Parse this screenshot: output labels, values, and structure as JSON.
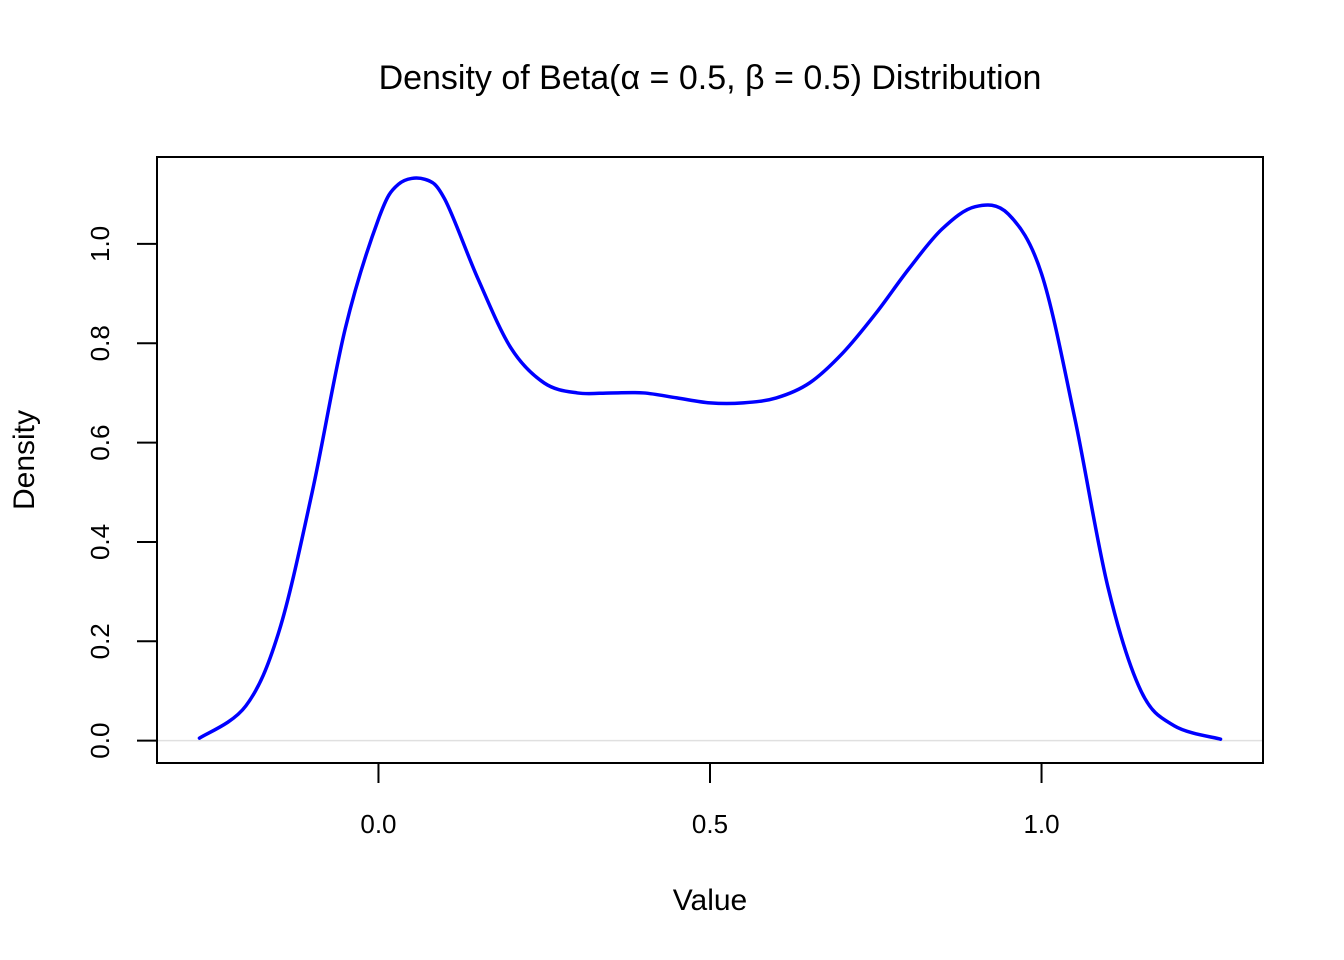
{
  "chart_data": {
    "type": "line",
    "title": "Density of Beta(α = 0.5, β = 0.5) Distribution",
    "xlabel": "Value",
    "ylabel": "Density",
    "xlim": [
      -0.334,
      1.334
    ],
    "ylim": [
      -0.045,
      1.175
    ],
    "xticks": [
      0.0,
      0.5,
      1.0
    ],
    "xtick_labels": [
      "0.0",
      "0.5",
      "1.0"
    ],
    "yticks": [
      0.0,
      0.2,
      0.4,
      0.6,
      0.8,
      1.0
    ],
    "ytick_labels": [
      "0.0",
      "0.2",
      "0.4",
      "0.6",
      "0.8",
      "1.0"
    ],
    "grid": false,
    "baseline": 0,
    "series": [
      {
        "color": "#0000ff",
        "x": [
          -0.27,
          -0.2,
          -0.15,
          -0.1,
          -0.05,
          0.0,
          0.03,
          0.07,
          0.1,
          0.15,
          0.2,
          0.25,
          0.3,
          0.35,
          0.4,
          0.45,
          0.5,
          0.55,
          0.6,
          0.65,
          0.7,
          0.75,
          0.8,
          0.85,
          0.9,
          0.95,
          1.0,
          1.05,
          1.1,
          1.15,
          1.2,
          1.27
        ],
        "y": [
          0.005,
          0.07,
          0.22,
          0.5,
          0.83,
          1.05,
          1.12,
          1.13,
          1.09,
          0.93,
          0.79,
          0.72,
          0.7,
          0.7,
          0.7,
          0.69,
          0.68,
          0.68,
          0.69,
          0.72,
          0.78,
          0.86,
          0.95,
          1.03,
          1.075,
          1.06,
          0.94,
          0.65,
          0.31,
          0.1,
          0.03,
          0.003
        ]
      }
    ]
  }
}
